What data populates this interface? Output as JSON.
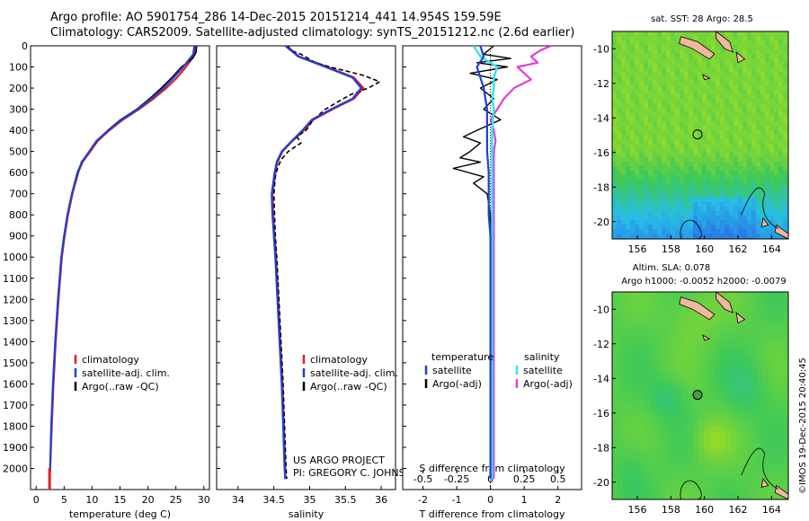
{
  "header": {
    "line1": "Argo profile: AO 5901754_286 14-Dec-2015 20151214_441 14.954S 159.59E",
    "line2": "Climatology: CARS2009. Satellite-adjusted climatology: synTS_20151212.nc (2.6d earlier)"
  },
  "colors": {
    "climatology": "#e02020",
    "satellite": "#1f3fd6",
    "argo": "#000000",
    "sal_sat": "#33e6e6",
    "sal_argo": "#e040e0"
  },
  "chart_data": [
    {
      "type": "line",
      "xlabel": "temperature (deg C)",
      "ylabel": "",
      "xlim": [
        -1,
        31
      ],
      "ylim": [
        2100,
        0
      ],
      "xticks": [
        "0",
        "5",
        "10",
        "15",
        "20",
        "25",
        "30"
      ],
      "yticks": [
        "0",
        "100",
        "200",
        "300",
        "400",
        "500",
        "600",
        "700",
        "800",
        "900",
        "1000",
        "1100",
        "1200",
        "1300",
        "1400",
        "1500",
        "1600",
        "1700",
        "1800",
        "1900",
        "2000"
      ],
      "legend": [
        "climatology",
        "satellite-adj. clim.",
        "Argo(..raw -QC)"
      ],
      "series": [
        {
          "name": "climatology",
          "depth": [
            0,
            40,
            100,
            150,
            200,
            250,
            300,
            350,
            400,
            450,
            500,
            550,
            600,
            700,
            800,
            900,
            1000,
            1200,
            1400,
            1600,
            1800,
            2000,
            2050
          ],
          "values": [
            28.6,
            28.4,
            26.8,
            25.2,
            23.3,
            21.0,
            18.4,
            15.5,
            13.1,
            11.0,
            9.7,
            8.3,
            7.5,
            6.5,
            5.7,
            5.1,
            4.6,
            4.0,
            3.5,
            3.1,
            2.8,
            2.5,
            2.4
          ]
        },
        {
          "name": "satellite-adj. clim.",
          "depth": [
            0,
            40,
            100,
            150,
            200,
            250,
            300,
            350,
            400,
            450,
            500,
            550,
            600,
            700,
            800,
            900,
            1000,
            1200,
            1400,
            1600,
            1800,
            2000,
            2050
          ],
          "values": [
            28.3,
            28.1,
            26.3,
            24.6,
            22.8,
            20.6,
            18.2,
            15.3,
            12.9,
            10.8,
            9.5,
            8.2,
            7.4,
            6.4,
            5.6,
            5.0,
            4.5,
            3.9,
            3.4,
            3.0,
            2.7,
            2.5,
            2.4
          ]
        },
        {
          "name": "Argo(..raw -QC)",
          "depth": [
            0,
            30,
            60,
            100,
            150,
            200,
            250,
            300,
            350,
            400,
            450,
            500,
            550,
            600,
            700,
            800,
            900,
            1000,
            1200,
            1400,
            1600,
            1800,
            2000,
            2050
          ],
          "values": [
            28.7,
            28.6,
            28.0,
            26.0,
            24.3,
            22.4,
            20.3,
            18.0,
            15.1,
            12.8,
            10.9,
            9.5,
            8.1,
            7.5,
            6.4,
            5.6,
            5.0,
            4.5,
            3.9,
            3.4,
            3.0,
            2.7,
            2.5,
            2.4
          ]
        }
      ]
    },
    {
      "type": "line",
      "xlabel": "salinity",
      "ylabel": "",
      "xlim": [
        33.7,
        36.2
      ],
      "ylim": [
        2100,
        0
      ],
      "xticks": [
        "34",
        "34.5",
        "35",
        "35.5",
        "36"
      ],
      "legend": [
        "climatology",
        "satellite-adj. clim.",
        "Argo(..raw -QC)"
      ],
      "annotation": [
        "US ARGO PROJECT",
        "PI: GREGORY C. JOHNSON"
      ],
      "series": [
        {
          "name": "climatology",
          "depth": [
            0,
            50,
            100,
            150,
            200,
            250,
            300,
            350,
            400,
            450,
            500,
            550,
            600,
            700,
            800,
            900,
            1000,
            1200,
            1400,
            1600,
            1800,
            2000,
            2050
          ],
          "values": [
            34.68,
            34.85,
            35.25,
            35.62,
            35.75,
            35.62,
            35.32,
            35.05,
            34.92,
            34.76,
            34.62,
            34.55,
            34.52,
            34.48,
            34.49,
            34.51,
            34.53,
            34.56,
            34.59,
            34.62,
            34.64,
            34.66,
            34.66
          ]
        },
        {
          "name": "satellite-adj. clim.",
          "depth": [
            0,
            50,
            100,
            150,
            200,
            250,
            300,
            350,
            400,
            450,
            500,
            550,
            600,
            700,
            800,
            900,
            1000,
            1200,
            1400,
            1600,
            1800,
            2000,
            2050
          ],
          "values": [
            34.66,
            34.84,
            35.22,
            35.6,
            35.72,
            35.6,
            35.3,
            35.03,
            34.9,
            34.75,
            34.61,
            34.54,
            34.51,
            34.47,
            34.48,
            34.5,
            34.52,
            34.55,
            34.58,
            34.61,
            34.63,
            34.65,
            34.66
          ]
        },
        {
          "name": "Argo(..raw -QC)",
          "depth": [
            0,
            20,
            40,
            60,
            80,
            100,
            120,
            140,
            170,
            200,
            230,
            260,
            300,
            350,
            400,
            430,
            460,
            500,
            540,
            580,
            620,
            700,
            800,
            900,
            1000,
            1200,
            1400,
            1600,
            1800,
            2000,
            2050
          ],
          "values": [
            34.7,
            34.72,
            34.88,
            34.98,
            35.08,
            35.28,
            35.52,
            35.75,
            35.98,
            35.82,
            35.58,
            35.42,
            35.22,
            35.05,
            34.95,
            34.82,
            34.88,
            34.7,
            34.6,
            34.55,
            34.52,
            34.5,
            34.51,
            34.52,
            34.54,
            34.57,
            34.6,
            34.63,
            34.65,
            34.67,
            34.68
          ]
        }
      ]
    },
    {
      "type": "line",
      "xlabel": "T difference from climatology",
      "xlabel2": "S difference from climatology",
      "xlim": [
        -2.6,
        2.7
      ],
      "ylim": [
        2100,
        0
      ],
      "xticks": [
        "-2",
        "-1",
        "0",
        "1",
        "2"
      ],
      "xticks2": [
        "-0.5",
        "-0.25",
        "0",
        "0.25",
        "0.5"
      ],
      "legend_t": [
        "temperature",
        "satellite",
        "Argo(-adj)"
      ],
      "legend_s": [
        "salinity",
        "satellite",
        "Argo(-adj)"
      ],
      "series": [
        {
          "name": "temperature satellite",
          "depth": [
            0,
            50,
            100,
            150,
            200,
            300,
            400,
            500,
            600,
            700,
            800,
            900,
            1000,
            1200,
            1600,
            2000,
            2050
          ],
          "values": [
            -0.3,
            -0.2,
            -0.4,
            -0.3,
            -0.2,
            -0.1,
            -0.1,
            -0.1,
            -0.05,
            -0.05,
            -0.05,
            0,
            0,
            0,
            0,
            0,
            0
          ]
        },
        {
          "name": "temperature Argo(-adj)",
          "depth": [
            0,
            40,
            60,
            80,
            100,
            130,
            160,
            200,
            250,
            300,
            350,
            400,
            430,
            460,
            500,
            530,
            550,
            580,
            620,
            650,
            700,
            800,
            1000,
            1200,
            1600,
            2000,
            2050
          ],
          "values": [
            0.1,
            -0.2,
            0.6,
            -0.4,
            0.5,
            -0.6,
            0.2,
            -0.3,
            0.1,
            -0.2,
            0.3,
            -0.4,
            -0.8,
            -0.3,
            -0.6,
            -0.9,
            -0.3,
            -1.1,
            -0.2,
            -0.5,
            -0.1,
            0,
            0.05,
            0.05,
            0.05,
            0.05,
            0.05
          ]
        },
        {
          "name": "salinity satellite",
          "depth": [
            0,
            50,
            100,
            150,
            200,
            250,
            300,
            400,
            500,
            600,
            800,
            1000,
            1400,
            2000,
            2050
          ],
          "values": [
            -0.5,
            -0.3,
            0.2,
            0.1,
            0.1,
            0.05,
            0.1,
            0.05,
            0.05,
            0.05,
            0.05,
            0.05,
            0.05,
            0.05,
            0.05
          ]
        },
        {
          "name": "salinity Argo(-adj)",
          "depth": [
            0,
            20,
            50,
            80,
            100,
            130,
            160,
            200,
            250,
            300,
            350,
            400,
            450,
            500,
            600,
            800,
            1000,
            1400,
            2000,
            2050
          ],
          "values": [
            1.8,
            1.5,
            1.2,
            1.4,
            0.8,
            1.0,
            1.2,
            0.7,
            0.4,
            0.2,
            0.0,
            0.1,
            0.15,
            0.1,
            0.1,
            0.1,
            0.1,
            0.1,
            0.1,
            0.1
          ]
        }
      ]
    },
    {
      "type": "heatmap",
      "title": "sat. SST: 28 Argo: 28.5",
      "xticks": [
        "156",
        "158",
        "160",
        "162",
        "164"
      ],
      "yticks": [
        "-10",
        "-12",
        "-14",
        "-16",
        "-18",
        "-20"
      ],
      "xlim": [
        154.5,
        165
      ],
      "ylim": [
        -21,
        -9
      ],
      "marker": {
        "lon": 159.59,
        "lat": -14.954
      }
    },
    {
      "type": "heatmap",
      "title": "Altim. SLA: 0.078",
      "subtitle": "Argo h1000: -0.0052 h2000: -0.0079",
      "xticks": [
        "156",
        "158",
        "160",
        "162",
        "164"
      ],
      "yticks": [
        "-10",
        "-12",
        "-14",
        "-16",
        "-18",
        "-20"
      ],
      "xlim": [
        154.5,
        165
      ],
      "ylim": [
        -21,
        -9
      ],
      "marker": {
        "lon": 159.59,
        "lat": -14.954
      }
    }
  ],
  "stamp": "©IMOS 19-Dec-2015 20:40:45"
}
